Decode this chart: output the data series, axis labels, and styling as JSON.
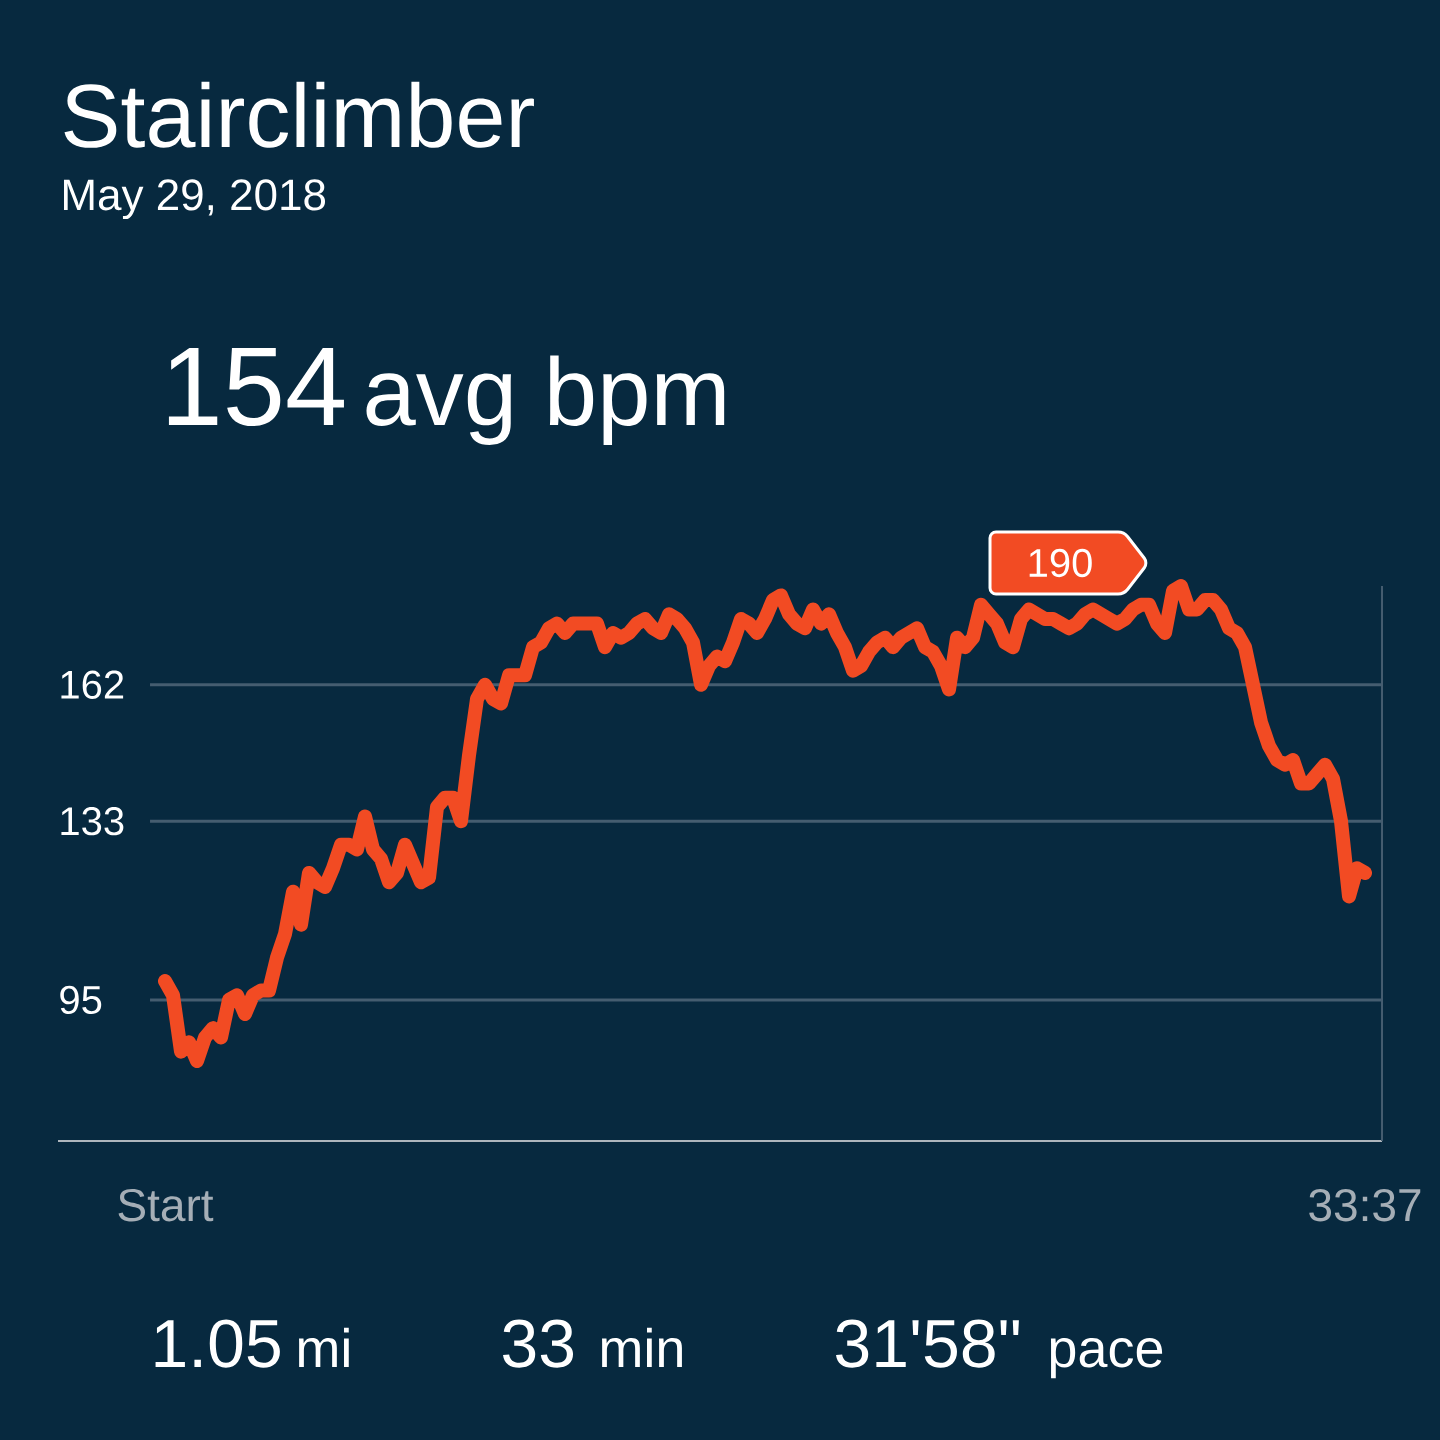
{
  "chart_data": {
    "type": "line",
    "title": "Stairclimber",
    "subtitle": "May 29, 2018",
    "categories": [
      "Start",
      null,
      null,
      null,
      null,
      null,
      null,
      null,
      null,
      null,
      null,
      null,
      null,
      null,
      null,
      null,
      null,
      null,
      null,
      null,
      null,
      null,
      null,
      null,
      null,
      null,
      null,
      null,
      null,
      null,
      null,
      null,
      null,
      null,
      null,
      null,
      null,
      null,
      null,
      null,
      null,
      null,
      null,
      null,
      null,
      null,
      null,
      null,
      null,
      null,
      null,
      null,
      null,
      null,
      null,
      null,
      null,
      null,
      null,
      null,
      null,
      null,
      null,
      null,
      null,
      null,
      null,
      null,
      null,
      null,
      null,
      null,
      null,
      null,
      null,
      null,
      null,
      null,
      null,
      null,
      null,
      null,
      null,
      null,
      null,
      null,
      null,
      null,
      null,
      null,
      null,
      null,
      null,
      null,
      null,
      null,
      null,
      null,
      null,
      null,
      null,
      null,
      null,
      null,
      null,
      null,
      null,
      null,
      null,
      null,
      null,
      null,
      null,
      null,
      null,
      null,
      null,
      null,
      null,
      null,
      null,
      null,
      null,
      null,
      null,
      null,
      null,
      null,
      null,
      null,
      null,
      null,
      null,
      null,
      null,
      null,
      null,
      null,
      null,
      null,
      null,
      null,
      null,
      null,
      null,
      null,
      null,
      null,
      null,
      null,
      "33:37"
    ],
    "values": [
      99,
      96,
      84,
      86,
      82,
      87,
      89,
      87,
      95,
      96,
      92,
      96,
      97,
      97,
      104,
      109,
      118,
      111,
      122,
      120,
      119,
      123,
      128,
      128,
      127,
      134,
      127,
      125,
      120,
      122,
      128,
      124,
      120,
      121,
      136,
      138,
      138,
      133,
      147,
      159,
      162,
      159,
      158,
      164,
      164,
      164,
      170,
      171,
      174,
      175,
      173,
      175,
      175,
      175,
      175,
      170,
      173,
      172,
      173,
      175,
      176,
      174,
      173,
      177,
      176,
      174,
      171,
      162,
      166,
      168,
      167,
      171,
      176,
      175,
      173,
      176,
      180,
      181,
      177,
      175,
      174,
      178,
      175,
      177,
      173,
      170,
      165,
      166,
      169,
      171,
      172,
      170,
      172,
      173,
      174,
      170,
      169,
      166,
      161,
      172,
      170,
      172,
      179,
      177,
      175,
      171,
      170,
      176,
      178,
      177,
      176,
      176,
      175,
      174,
      175,
      177,
      178,
      177,
      176,
      175,
      176,
      178,
      179,
      179,
      175,
      173,
      182,
      183,
      178,
      178,
      180,
      180,
      178,
      174,
      173,
      170,
      162,
      154,
      149,
      146,
      145,
      146,
      141,
      141,
      143,
      145,
      142,
      133,
      117,
      123,
      122
    ],
    "color": "#f24b23",
    "ylim": [
      65,
      183
    ],
    "yticks": [
      95,
      133,
      162
    ],
    "grid": "y",
    "annotations": [
      "154",
      "avg bpm",
      "190",
      "1.05",
      "mi",
      "33",
      "min",
      "31'58\"",
      "pace"
    ]
  }
}
